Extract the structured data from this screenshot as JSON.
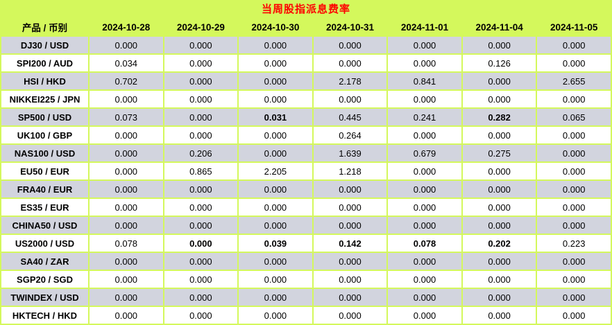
{
  "page": {
    "title": "当周股指派息费率"
  },
  "colors": {
    "background": "#d4f85c",
    "grid": "#d4f85c",
    "row_gray": "#d2d4de",
    "row_white": "#ffffff",
    "title_red": "#ff0000",
    "text": "#000000"
  },
  "table": {
    "header": [
      "产品 / 币别",
      "2024-10-28",
      "2024-10-29",
      "2024-10-30",
      "2024-10-31",
      "2024-11-01",
      "2024-11-04",
      "2024-11-05"
    ],
    "rows": [
      {
        "label": "DJ30 / USD",
        "values": [
          "0.000",
          "0.000",
          "0.000",
          "0.000",
          "0.000",
          "0.000",
          "0.000"
        ],
        "bold": []
      },
      {
        "label": "SPI200 / AUD",
        "values": [
          "0.034",
          "0.000",
          "0.000",
          "0.000",
          "0.000",
          "0.126",
          "0.000"
        ],
        "bold": []
      },
      {
        "label": "HSI / HKD",
        "values": [
          "0.702",
          "0.000",
          "0.000",
          "2.178",
          "0.841",
          "0.000",
          "2.655"
        ],
        "bold": []
      },
      {
        "label": "NIKKEI225 / JPN",
        "values": [
          "0.000",
          "0.000",
          "0.000",
          "0.000",
          "0.000",
          "0.000",
          "0.000"
        ],
        "bold": []
      },
      {
        "label": "SP500 / USD",
        "values": [
          "0.073",
          "0.000",
          "0.031",
          "0.445",
          "0.241",
          "0.282",
          "0.065"
        ],
        "bold": [
          2,
          5
        ]
      },
      {
        "label": "UK100 / GBP",
        "values": [
          "0.000",
          "0.000",
          "0.000",
          "0.264",
          "0.000",
          "0.000",
          "0.000"
        ],
        "bold": []
      },
      {
        "label": "NAS100 / USD",
        "values": [
          "0.000",
          "0.206",
          "0.000",
          "1.639",
          "0.679",
          "0.275",
          "0.000"
        ],
        "bold": []
      },
      {
        "label": "EU50 / EUR",
        "values": [
          "0.000",
          "0.865",
          "2.205",
          "1.218",
          "0.000",
          "0.000",
          "0.000"
        ],
        "bold": []
      },
      {
        "label": "FRA40 / EUR",
        "values": [
          "0.000",
          "0.000",
          "0.000",
          "0.000",
          "0.000",
          "0.000",
          "0.000"
        ],
        "bold": []
      },
      {
        "label": "ES35 / EUR",
        "values": [
          "0.000",
          "0.000",
          "0.000",
          "0.000",
          "0.000",
          "0.000",
          "0.000"
        ],
        "bold": []
      },
      {
        "label": "CHINA50 / USD",
        "values": [
          "0.000",
          "0.000",
          "0.000",
          "0.000",
          "0.000",
          "0.000",
          "0.000"
        ],
        "bold": []
      },
      {
        "label": "US2000 / USD",
        "values": [
          "0.078",
          "0.000",
          "0.039",
          "0.142",
          "0.078",
          "0.202",
          "0.223"
        ],
        "bold": [
          1,
          2,
          3,
          4,
          5
        ]
      },
      {
        "label": "SA40 / ZAR",
        "values": [
          "0.000",
          "0.000",
          "0.000",
          "0.000",
          "0.000",
          "0.000",
          "0.000"
        ],
        "bold": []
      },
      {
        "label": "SGP20 / SGD",
        "values": [
          "0.000",
          "0.000",
          "0.000",
          "0.000",
          "0.000",
          "0.000",
          "0.000"
        ],
        "bold": []
      },
      {
        "label": "TWINDEX / USD",
        "values": [
          "0.000",
          "0.000",
          "0.000",
          "0.000",
          "0.000",
          "0.000",
          "0.000"
        ],
        "bold": []
      },
      {
        "label": "HKTECH / HKD",
        "values": [
          "0.000",
          "0.000",
          "0.000",
          "0.000",
          "0.000",
          "0.000",
          "0.000"
        ],
        "bold": []
      }
    ]
  }
}
